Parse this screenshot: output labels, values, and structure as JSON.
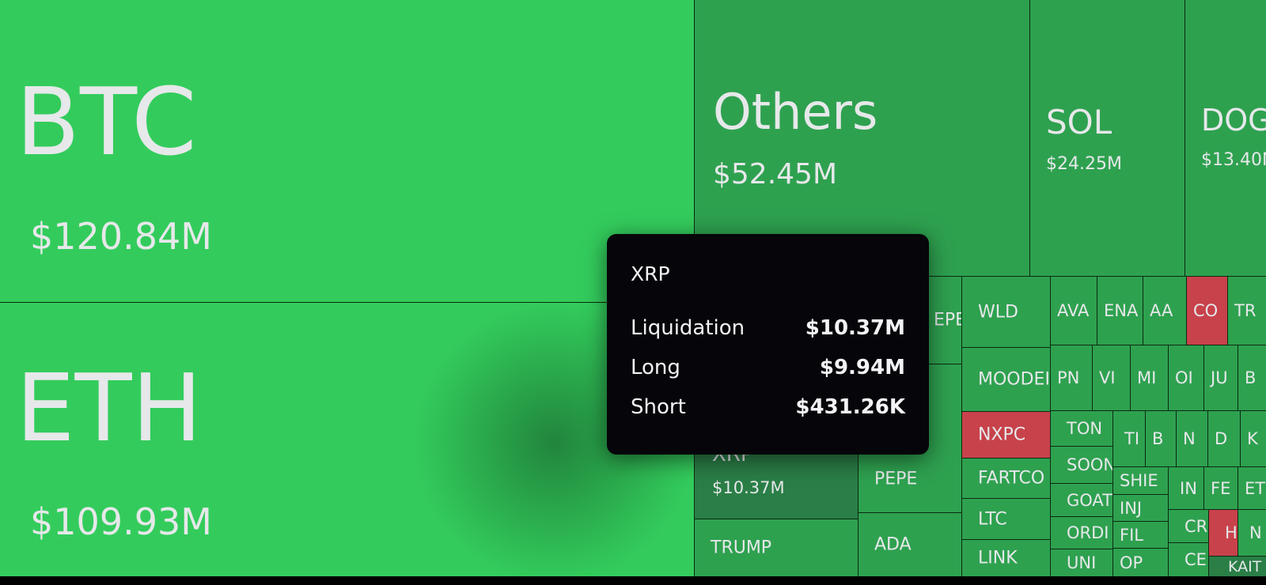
{
  "colors": {
    "bright_green": "#33cc5c",
    "green": "#2ea14f",
    "red": "#c8424b",
    "tooltip_bg": "#06060a"
  },
  "tiles": {
    "btc": {
      "name": "BTC",
      "value": "$120.84M"
    },
    "eth": {
      "name": "ETH",
      "value": "$109.93M"
    },
    "others": {
      "name": "Others",
      "value": "$52.45M"
    },
    "sol": {
      "name": "SOL",
      "value": "$24.25M"
    },
    "doge": {
      "name": "DOG",
      "value": "$13.40N"
    },
    "xrp": {
      "name": "XRP",
      "value": "$10.37M"
    },
    "pepe_partial": {
      "name": "EPE"
    },
    "pepe": {
      "name": "PEPE"
    },
    "ada": {
      "name": "ADA"
    },
    "trump": {
      "name": "TRUMP"
    },
    "wld": {
      "name": "WLD"
    },
    "moodeng": {
      "name": "MOODEI"
    },
    "nxpc": {
      "name": "NXPC"
    },
    "fartcoin": {
      "name": "FARTCO"
    },
    "ltc": {
      "name": "LTC"
    },
    "link": {
      "name": "LINK"
    },
    "ava": {
      "name": "AVA"
    },
    "ena": {
      "name": "ENA"
    },
    "aa": {
      "name": "AA"
    },
    "co": {
      "name": "CO"
    },
    "tr": {
      "name": "TR"
    },
    "pn": {
      "name": "PN"
    },
    "vi": {
      "name": "VI"
    },
    "mi": {
      "name": "MI"
    },
    "oi": {
      "name": "OI"
    },
    "ju": {
      "name": "JU"
    },
    "b1": {
      "name": "B"
    },
    "ton": {
      "name": "TON"
    },
    "soon": {
      "name": "SOON"
    },
    "goat": {
      "name": "GOAT"
    },
    "ordi": {
      "name": "ORDI"
    },
    "uni": {
      "name": "UNI"
    },
    "ti": {
      "name": "TI"
    },
    "b2": {
      "name": "B"
    },
    "n1": {
      "name": "N"
    },
    "d": {
      "name": "D"
    },
    "k": {
      "name": "K"
    },
    "shib": {
      "name": "SHIE"
    },
    "inj": {
      "name": "INJ"
    },
    "fil": {
      "name": "FIL"
    },
    "op": {
      "name": "OP"
    },
    "in": {
      "name": "IN"
    },
    "fe": {
      "name": "FE"
    },
    "et": {
      "name": "ET"
    },
    "cr": {
      "name": "CR"
    },
    "h": {
      "name": "H"
    },
    "n2": {
      "name": "N"
    },
    "ce": {
      "name": "CE"
    },
    "kait": {
      "name": "KAIT"
    }
  },
  "tooltip": {
    "title": "XRP",
    "rows": [
      {
        "label": "Liquidation",
        "value": "$10.37M"
      },
      {
        "label": "Long",
        "value": "$9.94M"
      },
      {
        "label": "Short",
        "value": "$431.26K"
      }
    ]
  }
}
